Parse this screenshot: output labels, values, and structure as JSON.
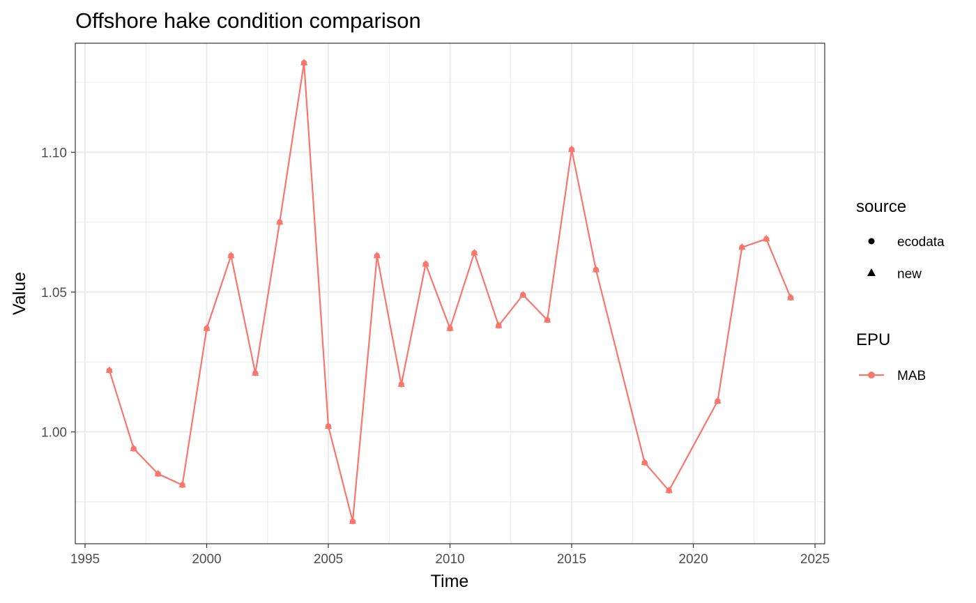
{
  "chart_data": {
    "type": "line",
    "title": "Offshore hake condition comparison",
    "xlabel": "Time",
    "ylabel": "Value",
    "xlim": [
      1994.6,
      2025.4
    ],
    "ylim": [
      0.96,
      1.139
    ],
    "x_ticks": [
      1995,
      2000,
      2005,
      2010,
      2015,
      2020,
      2025
    ],
    "x_tick_labels": [
      "1995",
      "2000",
      "2005",
      "2010",
      "2015",
      "2020",
      "2025"
    ],
    "y_ticks": [
      1.0,
      1.05,
      1.1
    ],
    "y_tick_labels": [
      "1.00",
      "1.05",
      "1.10"
    ],
    "grid": true,
    "legend_position": "right",
    "series": [
      {
        "name": "MAB",
        "color": "#F8766D",
        "x": [
          1996,
          1997,
          1998,
          1999,
          2000,
          2001,
          2002,
          2003,
          2004,
          2005,
          2006,
          2007,
          2008,
          2009,
          2010,
          2011,
          2012,
          2013,
          2014,
          2015,
          2016,
          2018,
          2019,
          2021,
          2022,
          2023,
          2024
        ],
        "y": [
          1.022,
          0.994,
          0.985,
          0.981,
          1.037,
          1.063,
          1.021,
          1.075,
          1.132,
          1.002,
          0.968,
          1.063,
          1.017,
          1.06,
          1.037,
          1.064,
          1.038,
          1.049,
          1.04,
          1.101,
          1.058,
          0.989,
          0.979,
          1.011,
          1.066,
          1.069,
          1.048
        ]
      }
    ],
    "legends": [
      {
        "title": "source",
        "entries": [
          {
            "label": "ecodata",
            "shape": "circle"
          },
          {
            "label": "new",
            "shape": "triangle"
          }
        ]
      },
      {
        "title": "EPU",
        "entries": [
          {
            "label": "MAB",
            "shape": "line-circle",
            "color": "#F8766D"
          }
        ]
      }
    ]
  }
}
